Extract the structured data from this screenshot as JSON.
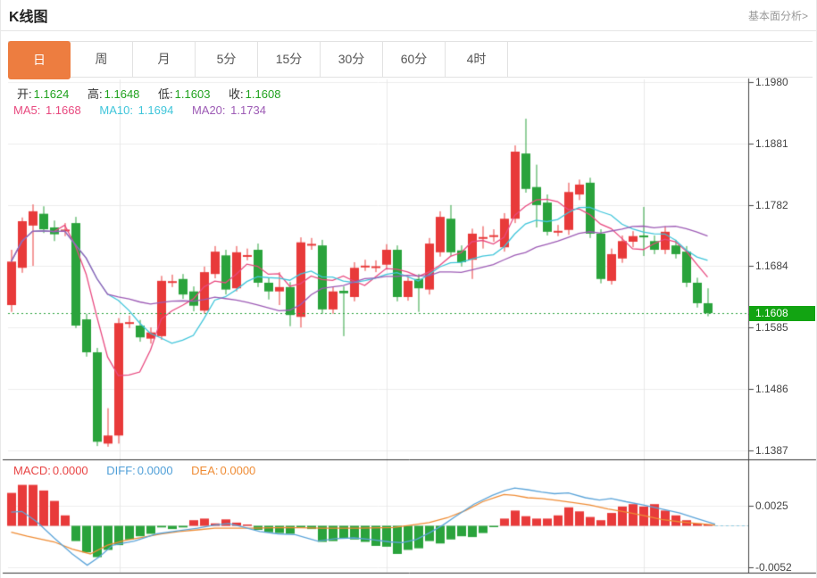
{
  "header": {
    "title": "K线图",
    "link": "基本面分析>"
  },
  "tabs": [
    {
      "label": "日",
      "active": true
    },
    {
      "label": "周",
      "active": false
    },
    {
      "label": "月",
      "active": false
    },
    {
      "label": "5分",
      "active": false
    },
    {
      "label": "15分",
      "active": false
    },
    {
      "label": "30分",
      "active": false
    },
    {
      "label": "60分",
      "active": false
    },
    {
      "label": "4时",
      "active": false
    }
  ],
  "info": {
    "ohlc": [
      {
        "label": "开:",
        "value": "1.1624"
      },
      {
        "label": "高:",
        "value": "1.1648"
      },
      {
        "label": "低:",
        "value": "1.1603"
      },
      {
        "label": "收:",
        "value": "1.1608"
      }
    ],
    "ohlc_value_color": "#21a21f",
    "ma": [
      {
        "label": "MA5:",
        "value": "1.1668",
        "color": "#e8497f"
      },
      {
        "label": "MA10:",
        "value": "1.1694",
        "color": "#3fc5da"
      },
      {
        "label": "MA20:",
        "value": "1.1734",
        "color": "#9d5bb5"
      }
    ]
  },
  "macd_legend": [
    {
      "label": "MACD:",
      "value": "0.0000",
      "color": "#e84545"
    },
    {
      "label": "DIFF:",
      "value": "0.0000",
      "color": "#4f9fd8"
    },
    {
      "label": "DEA:",
      "value": "0.0000",
      "color": "#ef8c35"
    }
  ],
  "colors": {
    "up_candle": "#e83a3a",
    "down_candle": "#2aa33c",
    "ma5": "#e8497f",
    "ma10": "#3fc5da",
    "ma20": "#9d5bb5",
    "diff_line": "#5ba4d9",
    "dea_line": "#ef8c35",
    "price_line": "#2aa33c",
    "price_tag_bg": "#12a412",
    "active_tab": "#ed7d40"
  },
  "chart_data": {
    "type": "candlestick+macd",
    "main": {
      "y_ticks": [
        1.198,
        1.1881,
        1.1782,
        1.1684,
        1.1585,
        1.1486,
        1.1387
      ],
      "axis_top": 1.198,
      "axis_bottom": 1.1387,
      "current_price": 1.1608,
      "ma_periods": [
        5,
        10,
        20
      ],
      "candles": [
        [
          1.1621,
          1.171,
          1.161,
          1.1691
        ],
        [
          1.1681,
          1.1762,
          1.1673,
          1.1756
        ],
        [
          1.1749,
          1.1783,
          1.1684,
          1.1772
        ],
        [
          1.1768,
          1.178,
          1.1737,
          1.1743
        ],
        [
          1.1746,
          1.1757,
          1.1724,
          1.1735
        ],
        [
          1.1742,
          1.1753,
          1.1732,
          1.17425
        ],
        [
          1.1753,
          1.1763,
          1.1584,
          1.1588
        ],
        [
          1.1598,
          1.1607,
          1.1538,
          1.1545
        ],
        [
          1.1545,
          1.1552,
          1.1394,
          1.1401
        ],
        [
          1.1398,
          1.1455,
          1.1393,
          1.1411
        ],
        [
          1.1411,
          1.16,
          1.1398,
          1.1592
        ],
        [
          1.1593,
          1.1604,
          1.1584,
          1.15935
        ],
        [
          1.1588,
          1.1597,
          1.1562,
          1.1569
        ],
        [
          1.1567,
          1.1585,
          1.1559,
          1.1577
        ],
        [
          1.1571,
          1.1668,
          1.1565,
          1.166
        ],
        [
          1.1659,
          1.167,
          1.165,
          1.16595
        ],
        [
          1.1663,
          1.1671,
          1.1631,
          1.1638
        ],
        [
          1.1643,
          1.1651,
          1.1611,
          1.162
        ],
        [
          1.1612,
          1.1683,
          1.1607,
          1.1674
        ],
        [
          1.1671,
          1.1716,
          1.1664,
          1.1707
        ],
        [
          1.1701,
          1.171,
          1.1638,
          1.1646
        ],
        [
          1.1648,
          1.1716,
          1.1643,
          1.1706
        ],
        [
          1.1701,
          1.1712,
          1.1693,
          1.17015
        ],
        [
          1.171,
          1.172,
          1.165,
          1.1657
        ],
        [
          1.1657,
          1.1665,
          1.163,
          1.1643
        ],
        [
          1.1643,
          1.1674,
          1.1621,
          1.165
        ],
        [
          1.165,
          1.1658,
          1.1587,
          1.1605
        ],
        [
          1.1602,
          1.173,
          1.1585,
          1.1722
        ],
        [
          1.1719,
          1.1729,
          1.171,
          1.17195
        ],
        [
          1.1717,
          1.1726,
          1.1607,
          1.1614
        ],
        [
          1.1614,
          1.1651,
          1.1607,
          1.1643
        ],
        [
          1.1644,
          1.1651,
          1.1571,
          1.164
        ],
        [
          1.1634,
          1.169,
          1.1627,
          1.1681
        ],
        [
          1.1684,
          1.1694,
          1.1676,
          1.16845
        ],
        [
          1.1683,
          1.1693,
          1.1674,
          1.16835
        ],
        [
          1.1686,
          1.1719,
          1.1678,
          1.171
        ],
        [
          1.171,
          1.1717,
          1.1627,
          1.1634
        ],
        [
          1.1634,
          1.1667,
          1.1628,
          1.166
        ],
        [
          1.1663,
          1.1671,
          1.161,
          1.1648
        ],
        [
          1.1646,
          1.1729,
          1.1638,
          1.172
        ],
        [
          1.1706,
          1.1772,
          1.1699,
          1.1763
        ],
        [
          1.176,
          1.1782,
          1.17,
          1.1706
        ],
        [
          1.1709,
          1.1717,
          1.1683,
          1.169
        ],
        [
          1.1694,
          1.1744,
          1.1663,
          1.1736
        ],
        [
          1.173,
          1.1748,
          1.1712,
          1.17305
        ],
        [
          1.1733,
          1.1743,
          1.1723,
          1.17335
        ],
        [
          1.1714,
          1.1769,
          1.1707,
          1.176
        ],
        [
          1.176,
          1.1878,
          1.1753,
          1.1868
        ],
        [
          1.1865,
          1.1921,
          1.1802,
          1.1808
        ],
        [
          1.1811,
          1.1847,
          1.1746,
          1.1782
        ],
        [
          1.1786,
          1.1799,
          1.1733,
          1.1739
        ],
        [
          1.174,
          1.175,
          1.1732,
          1.17405
        ],
        [
          1.1742,
          1.1818,
          1.1734,
          1.1803
        ],
        [
          1.1799,
          1.1823,
          1.179,
          1.1815
        ],
        [
          1.1818,
          1.1826,
          1.1729,
          1.1736
        ],
        [
          1.1736,
          1.1743,
          1.1656,
          1.1663
        ],
        [
          1.166,
          1.1712,
          1.1654,
          1.1703
        ],
        [
          1.1696,
          1.1733,
          1.1689,
          1.1724
        ],
        [
          1.1723,
          1.174,
          1.1714,
          1.1732
        ],
        [
          1.1733,
          1.1779,
          1.17,
          1.173
        ],
        [
          1.1724,
          1.1733,
          1.1703,
          1.171
        ],
        [
          1.171,
          1.1748,
          1.1703,
          1.1739
        ],
        [
          1.1717,
          1.1726,
          1.1696,
          1.1703
        ],
        [
          1.1707,
          1.1716,
          1.165,
          1.1657
        ],
        [
          1.1657,
          1.1665,
          1.1617,
          1.1624
        ],
        [
          1.1624,
          1.1648,
          1.1603,
          1.1608
        ]
      ]
    },
    "macd": {
      "y_ticks": [
        0.0025,
        -0.0052
      ],
      "histogram": [
        0.0041,
        0.0051,
        0.0051,
        0.0044,
        0.0031,
        0.0013,
        -0.0019,
        -0.0033,
        -0.0039,
        -0.003,
        -0.0024,
        -0.0017,
        -0.0013,
        -0.001,
        -0.0002,
        -0.0004,
        -0.0002,
        0.0007,
        0.0009,
        0.0003,
        0.0008,
        0.0004,
        0.0001,
        -0.0005,
        -0.0008,
        -0.0009,
        -0.001,
        -0.0002,
        -0.0004,
        -0.002,
        -0.0019,
        -0.0015,
        -0.0017,
        -0.002,
        -0.0025,
        -0.0026,
        -0.0035,
        -0.003,
        -0.0028,
        -0.0019,
        -0.0022,
        -0.0017,
        -0.0013,
        -0.0014,
        -0.0009,
        -0.0001,
        0.0009,
        0.0019,
        0.0012,
        0.0009,
        0.0009,
        0.0013,
        0.0023,
        0.0018,
        0.0011,
        0.0007,
        0.0016,
        0.0024,
        0.0027,
        0.0024,
        0.0027,
        0.0019,
        0.0013,
        0.0007,
        0.0003,
        0.0001
      ],
      "diff_points": [
        [
          0,
          0.0017
        ],
        [
          1,
          0.0018
        ],
        [
          2.4,
          0.0005
        ],
        [
          4,
          -0.0015
        ],
        [
          5.7,
          -0.0035
        ],
        [
          7.1,
          -0.0049
        ],
        [
          8.2,
          -0.0039
        ],
        [
          9.5,
          -0.0024
        ],
        [
          11.5,
          -0.0019
        ],
        [
          13.6,
          -0.001
        ],
        [
          15.7,
          -0.0006
        ],
        [
          17.4,
          -0.0003
        ],
        [
          19,
          0.0001
        ],
        [
          20.3,
          0.0003
        ],
        [
          21.5,
          -0.0001
        ],
        [
          23.2,
          -0.0007
        ],
        [
          24.9,
          -0.001
        ],
        [
          26.5,
          -0.0011
        ],
        [
          28.6,
          -0.0019
        ],
        [
          30.3,
          -0.0016
        ],
        [
          32,
          -0.0015
        ],
        [
          33.6,
          -0.0017
        ],
        [
          35.3,
          -0.002
        ],
        [
          36.5,
          -0.0021
        ],
        [
          37.8,
          -0.0017
        ],
        [
          39,
          -0.0009
        ],
        [
          40.3,
          0.0001
        ],
        [
          41.5,
          0.0012
        ],
        [
          43.2,
          0.0027
        ],
        [
          44.9,
          0.0038
        ],
        [
          46.1,
          0.0044
        ],
        [
          47,
          0.0047
        ],
        [
          48.2,
          0.0045
        ],
        [
          49.5,
          0.0042
        ],
        [
          50.7,
          0.004
        ],
        [
          52,
          0.0041
        ],
        [
          53.6,
          0.0035
        ],
        [
          54.9,
          0.0032
        ],
        [
          56,
          0.0034
        ],
        [
          57.4,
          0.003
        ],
        [
          59,
          0.0026
        ],
        [
          60.7,
          0.0021
        ],
        [
          62.4,
          0.0016
        ],
        [
          64,
          0.0009
        ],
        [
          65.7,
          0.0002
        ]
      ],
      "dea_points": [
        [
          0,
          -0.0008
        ],
        [
          1.5,
          -0.0013
        ],
        [
          4,
          -0.002
        ],
        [
          5.7,
          -0.0029
        ],
        [
          7.4,
          -0.0035
        ],
        [
          9,
          -0.0024
        ],
        [
          10.7,
          -0.0018
        ],
        [
          12.4,
          -0.0014
        ],
        [
          14,
          -0.001
        ],
        [
          15.7,
          -0.0007
        ],
        [
          17.4,
          -0.0005
        ],
        [
          19,
          -0.0003
        ],
        [
          22.4,
          -0.0003
        ],
        [
          25.7,
          -0.0002
        ],
        [
          29,
          -0.0003
        ],
        [
          32.4,
          -0.0003
        ],
        [
          35.7,
          -0.0002
        ],
        [
          37.4,
          0.0001
        ],
        [
          39,
          0.0004
        ],
        [
          40.7,
          0.001
        ],
        [
          42.4,
          0.0019
        ],
        [
          44,
          0.003
        ],
        [
          45.3,
          0.0036
        ],
        [
          46,
          0.0039
        ],
        [
          47,
          0.0038
        ],
        [
          48.2,
          0.0035
        ],
        [
          49.5,
          0.0034
        ],
        [
          50.7,
          0.0032
        ],
        [
          52.4,
          0.0029
        ],
        [
          54,
          0.0026
        ],
        [
          55.7,
          0.0021
        ],
        [
          57.4,
          0.0017
        ],
        [
          59,
          0.0013
        ],
        [
          60.7,
          0.0008
        ],
        [
          62.4,
          0.0005
        ],
        [
          64,
          0.0003
        ],
        [
          65.7,
          0.0001
        ]
      ]
    }
  }
}
